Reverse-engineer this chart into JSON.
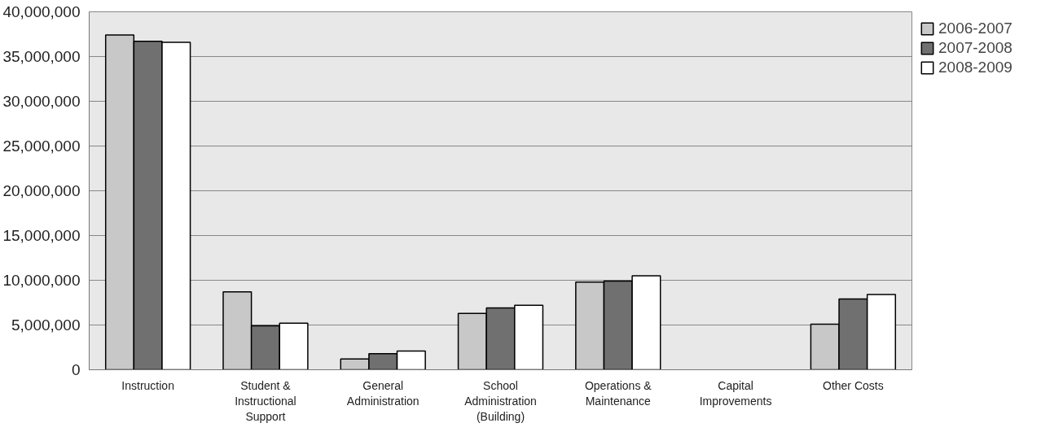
{
  "chart_data": {
    "type": "bar",
    "categories": [
      "Instruction",
      "Student &\nInstructional\nSupport",
      "General\nAdministration",
      "School\nAdministration\n(Building)",
      "Operations &\nMaintenance",
      "Capital\nImprovements",
      "Other Costs"
    ],
    "series": [
      {
        "name": "2006-2007",
        "color": "#c8c8c8",
        "values": [
          37400000,
          8700000,
          1200000,
          6300000,
          9800000,
          null,
          5100000
        ]
      },
      {
        "name": "2007-2008",
        "color": "#707070",
        "values": [
          36700000,
          4900000,
          1800000,
          6900000,
          9900000,
          null,
          7900000
        ]
      },
      {
        "name": "2008-2009",
        "color": "#ffffff",
        "values": [
          36600000,
          5200000,
          2100000,
          7200000,
          10500000,
          null,
          8400000
        ]
      }
    ],
    "ylim": [
      0,
      40000000
    ],
    "yticks": [
      {
        "value": 0,
        "label": "0"
      },
      {
        "value": 5000000,
        "label": "5,000,000"
      },
      {
        "value": 10000000,
        "label": "10,000,000"
      },
      {
        "value": 15000000,
        "label": "15,000,000"
      },
      {
        "value": 20000000,
        "label": "20,000,000"
      },
      {
        "value": 25000000,
        "label": "25,000,000"
      },
      {
        "value": 30000000,
        "label": "30,000,000"
      },
      {
        "value": 35000000,
        "label": "35,000,000"
      },
      {
        "value": 40000000,
        "label": "40,000,000"
      }
    ],
    "grid": "y",
    "legend": "top right"
  }
}
